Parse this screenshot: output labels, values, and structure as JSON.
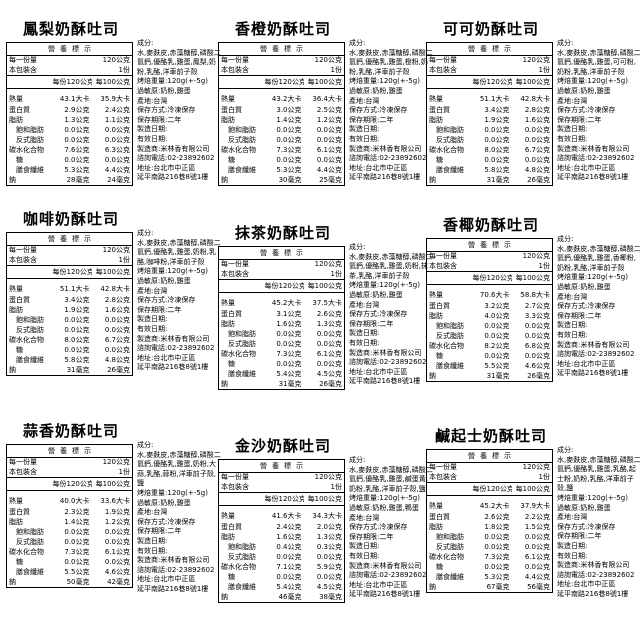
{
  "nutrition_common": {
    "table_title": "營養標示",
    "serving_label": "每一份量",
    "serving_value": "120公克",
    "package_label": "本包裝含",
    "package_value": "1份",
    "col_per_serving": "每份120公克",
    "col_per_100g": "每100公克",
    "row_labels": [
      {
        "label": "熱量",
        "indent": false
      },
      {
        "label": "蛋白質",
        "indent": false
      },
      {
        "label": "脂肪",
        "indent": false
      },
      {
        "label": "飽和脂肪",
        "indent": true
      },
      {
        "label": "反式脂肪",
        "indent": true
      },
      {
        "label": "碳水化合物",
        "indent": false
      },
      {
        "label": "糖",
        "indent": true
      },
      {
        "label": "膳食纖維",
        "indent": true
      },
      {
        "label": "鈉",
        "indent": false
      }
    ]
  },
  "products": [
    {
      "name": "鳳梨奶酥吐司",
      "values": [
        [
          "43.1大卡",
          "35.9大卡"
        ],
        [
          "2.9公克",
          "2.4公克"
        ],
        [
          "1.3公克",
          "1.1公克"
        ],
        [
          "0.0公克",
          "0.0公克"
        ],
        [
          "0.0公克",
          "0.0公克"
        ],
        [
          "7.6公克",
          "6.3公克"
        ],
        [
          "0.0公克",
          "0.0公克"
        ],
        [
          "5.3公克",
          "4.4公克"
        ],
        [
          "28毫克",
          "24毫克"
        ]
      ],
      "info": {
        "ingredients_label": "成分:",
        "ingredients": "水,麥麩皮,赤藻糖醇,磷酸二氫鈣,優酪乳,雞蛋,鳳梨,奶粉,乳酪,洋車前子殼",
        "baked_weight": "烤焙重量:120g(+-5g)",
        "allergens": "過敏原:奶粉,雞蛋",
        "origin": "產地:台灣",
        "storage": "保存方式:冷凍保存",
        "shelf_life": "保存期限:二年",
        "mfg_date": "製造日期:",
        "expiry_date": "有效日期:",
        "manufacturer": "製造商:米林香有限公司",
        "hotline": "諮詢電話:02-23892602",
        "address1": "地址:台北市中正區",
        "address2": "延平南路216巷8號1樓"
      }
    },
    {
      "name": "香橙奶酥吐司",
      "values": [
        [
          "43.2大卡",
          "36.4大卡"
        ],
        [
          "3.0公克",
          "2.5公克"
        ],
        [
          "1.4公克",
          "1.2公克"
        ],
        [
          "0.0公克",
          "0.0公克"
        ],
        [
          "0.0公克",
          "0.0公克"
        ],
        [
          "7.3公克",
          "6.1公克"
        ],
        [
          "0.0公克",
          "0.0公克"
        ],
        [
          "5.3公克",
          "4.4公克"
        ],
        [
          "30毫克",
          "25毫克"
        ]
      ],
      "info": {
        "ingredients_label": "成分:",
        "ingredients": "水,麥麩皮,赤藻糖醇,磷酸二氫鈣,優酪乳,雞蛋,橙粉,奶粉,乳酪,洋車前子殼",
        "baked_weight": "烤焙重量:120g(+-5g)",
        "allergens": "過敏原:奶粉,雞蛋",
        "origin": "產地:台灣",
        "storage": "保存方式:冷凍保存",
        "shelf_life": "保存期限:二年",
        "mfg_date": "製造日期:",
        "expiry_date": "有效日期:",
        "manufacturer": "製造商:米林香有限公司",
        "hotline": "諮詢電話:02-23892602",
        "address1": "地址:台北市中正區",
        "address2": "延平南路216巷8號1樓"
      }
    },
    {
      "name": "可可奶酥吐司",
      "values": [
        [
          "51.1大卡",
          "42.8大卡"
        ],
        [
          "3.4公克",
          "2.8公克"
        ],
        [
          "1.9公克",
          "1.6公克"
        ],
        [
          "0.0公克",
          "0.0公克"
        ],
        [
          "0.0公克",
          "0.0公克"
        ],
        [
          "8.0公克",
          "6.7公克"
        ],
        [
          "0.0公克",
          "0.0公克"
        ],
        [
          "5.8公克",
          "4.8公克"
        ],
        [
          "31毫克",
          "26毫克"
        ]
      ],
      "info": {
        "ingredients_label": "成分:",
        "ingredients": "水,麥麩皮,赤藻糖醇,磷酸二氫鈣,優酪乳,雞蛋,可可粉,奶粉,乳酪,洋車前子殼",
        "baked_weight": "烤焙重量:120g(+-5g)",
        "allergens": "過敏原:奶粉,雞蛋",
        "origin": "產地:台灣",
        "storage": "保存方式:冷凍保存",
        "shelf_life": "保存期限:二年",
        "mfg_date": "製造日期:",
        "expiry_date": "有效日期:",
        "manufacturer": "製造商:米林香有限公司",
        "hotline": "諮詢電話:02-23892602",
        "address1": "地址:台北市中正區",
        "address2": "延平南路216巷8號1樓"
      }
    },
    {
      "name": "咖啡奶酥吐司",
      "values": [
        [
          "51.1大卡",
          "42.8大卡"
        ],
        [
          "3.4公克",
          "2.8公克"
        ],
        [
          "1.9公克",
          "1.6公克"
        ],
        [
          "0.0公克",
          "0.0公克"
        ],
        [
          "0.0公克",
          "0.0公克"
        ],
        [
          "8.0公克",
          "6.7公克"
        ],
        [
          "0.0公克",
          "0.0公克"
        ],
        [
          "5.8公克",
          "4.8公克"
        ],
        [
          "31毫克",
          "26毫克"
        ]
      ],
      "info": {
        "ingredients_label": "成分:",
        "ingredients": "水,麥麩皮,赤藻糖醇,磷酸二氫鈣,優酪乳,雞蛋,奶粉,乳酪,咖啡粉,洋車前子殼",
        "baked_weight": "烤焙重量:120g(+-5g)",
        "allergens": "過敏原:奶粉,雞蛋",
        "origin": "產地:台灣",
        "storage": "保存方式:冷凍保存",
        "shelf_life": "保存期限:二年",
        "mfg_date": "製造日期:",
        "expiry_date": "有效日期:",
        "manufacturer": "製造商:米林香有限公司",
        "hotline": "諮詢電話:02-23892602",
        "address1": "地址:台北市中正區",
        "address2": "延平南路216巷8號1樓"
      }
    },
    {
      "name": "抹茶奶酥吐司",
      "values": [
        [
          "45.2大卡",
          "37.5大卡"
        ],
        [
          "3.1公克",
          "2.6公克"
        ],
        [
          "1.6公克",
          "1.3公克"
        ],
        [
          "0.0公克",
          "0.0公克"
        ],
        [
          "0.0公克",
          "0.0公克"
        ],
        [
          "7.3公克",
          "6.1公克"
        ],
        [
          "0.0公克",
          "0.0公克"
        ],
        [
          "5.4公克",
          "4.5公克"
        ],
        [
          "31毫克",
          "26毫克"
        ]
      ],
      "info": {
        "ingredients_label": "成分:",
        "ingredients": "水,麥麩皮,赤藻糖醇,磷酸二氫鈣,優酪乳,雞蛋,奶粉,抹茶,乳酪,洋車前子殼",
        "baked_weight": "烤焙重量:120g(+-5g)",
        "allergens": "過敏原:奶粉,雞蛋",
        "origin": "產地:台灣",
        "storage": "保存方式:冷凍保存",
        "shelf_life": "保存期限:二年",
        "mfg_date": "製造日期:",
        "expiry_date": "有效日期:",
        "manufacturer": "製造商:米林香有限公司",
        "hotline": "諮詢電話:02-23892602",
        "address1": "地址:台北市中正區",
        "address2": "延平南路216巷8號1樓"
      }
    },
    {
      "name": "香椰奶酥吐司",
      "values": [
        [
          "70.6大卡",
          "58.8大卡"
        ],
        [
          "3.2公克",
          "2.7公克"
        ],
        [
          "4.0公克",
          "3.3公克"
        ],
        [
          "0.0公克",
          "0.0公克"
        ],
        [
          "0.0公克",
          "0.0公克"
        ],
        [
          "8.2公克",
          "6.8公克"
        ],
        [
          "0.0公克",
          "0.0公克"
        ],
        [
          "5.5公克",
          "4.6公克"
        ],
        [
          "31毫克",
          "26毫克"
        ]
      ],
      "info": {
        "ingredients_label": "成分:",
        "ingredients": "水,麥麩皮,赤藻糖醇,磷酸二氫鈣,優酪乳,雞蛋,香椰粉,奶粉,乳酪,洋車前子殼",
        "baked_weight": "烤焙重量:120g(+-5g)",
        "allergens": "過敏原:奶粉,雞蛋",
        "origin": "產地:台灣",
        "storage": "保存方式:冷凍保存",
        "shelf_life": "保存期限:二年",
        "mfg_date": "製造日期:",
        "expiry_date": "有效日期:",
        "manufacturer": "製造商:米林香有限公司",
        "hotline": "諮詢電話:02-23892602",
        "address1": "地址:台北市中正區",
        "address2": "延平南路216巷8號1樓"
      }
    },
    {
      "name": "蒜香奶酥吐司",
      "values": [
        [
          "40.0大卡",
          "33.6大卡"
        ],
        [
          "2.3公克",
          "1.9公克"
        ],
        [
          "1.4公克",
          "1.2公克"
        ],
        [
          "0.0公克",
          "0.0公克"
        ],
        [
          "0.0公克",
          "0.0公克"
        ],
        [
          "7.3公克",
          "6.1公克"
        ],
        [
          "0.0公克",
          "0.0公克"
        ],
        [
          "5.5公克",
          "4.6公克"
        ],
        [
          "50毫克",
          "42毫克"
        ]
      ],
      "info": {
        "ingredients_label": "成分:",
        "ingredients": "水,麥麩皮,赤藻糖醇,磷酸二氫鈣,優酪乳,雞蛋,奶粉,大蒜,乳酪,蒜粉,洋車前子殼,鹽",
        "baked_weight": "烤焙重量:120g(+-5g)",
        "allergens": "過敏原:奶粉,雞蛋",
        "origin": "產地:台灣",
        "storage": "保存方式:冷凍保存",
        "shelf_life": "保存期限:二年",
        "mfg_date": "製造日期:",
        "expiry_date": "有效日期:",
        "manufacturer": "製造商:米林香有限公司",
        "hotline": "諮詢電話:02-23892602",
        "address1": "地址:台北市中正區",
        "address2": "延平南路216巷8號1樓"
      }
    },
    {
      "name": "金沙奶酥吐司",
      "values": [
        [
          "41.6大卡",
          "34.3大卡"
        ],
        [
          "2.4公克",
          "2.0公克"
        ],
        [
          "1.6公克",
          "1.3公克"
        ],
        [
          "0.4公克",
          "0.3公克"
        ],
        [
          "0.0公克",
          "0.0公克"
        ],
        [
          "7.1公克",
          "5.9公克"
        ],
        [
          "0.0公克",
          "0.0公克"
        ],
        [
          "5.4公克",
          "4.5公克"
        ],
        [
          "46毫克",
          "38毫克"
        ]
      ],
      "info": {
        "ingredients_label": "成分:",
        "ingredients": "水,麥麩皮,赤藻糖醇,磷酸二氫鈣,優酪乳,雞蛋,鹹蛋黃,奶粉,乳酪,洋車前子殼,鹽",
        "baked_weight": "烤焙重量:120g(+-5g)",
        "allergens": "過敏原:奶粉,雞蛋,鴨蛋",
        "origin": "產地:台灣",
        "storage": "保存方式:冷凍保存",
        "shelf_life": "保存期限:二年",
        "mfg_date": "製造日期:",
        "expiry_date": "有效日期:",
        "manufacturer": "製造商:米林香有限公司",
        "hotline": "諮詢電話:02-23892602",
        "address1": "地址:台北市中正區",
        "address2": "延平南路216巷8號1樓"
      }
    },
    {
      "name": "鹹起士奶酥吐司",
      "values": [
        [
          "45.2大卡",
          "37.9大卡"
        ],
        [
          "2.6公克",
          "2.2公克"
        ],
        [
          "1.8公克",
          "1.5公克"
        ],
        [
          "0.0公克",
          "0.0公克"
        ],
        [
          "0.0公克",
          "0.0公克"
        ],
        [
          "7.3公克",
          "6.1公克"
        ],
        [
          "0.0公克",
          "0.0公克"
        ],
        [
          "5.3公克",
          "4.4公克"
        ],
        [
          "67毫克",
          "56毫克"
        ]
      ],
      "info": {
        "ingredients_label": "成分:",
        "ingredients": "水,麥麩皮,赤藻糖醇,磷酸二氫鈣,優酪乳,雞蛋,乳酪,起士粉,奶粉,乳酪,洋車前子殼,鹽",
        "baked_weight": "烤焙重量:120g(+-5g)",
        "allergens": "過敏原:奶粉,雞蛋",
        "origin": "產地:台灣",
        "storage": "保存方式:冷凍保存",
        "shelf_life": "保存期限:二年",
        "mfg_date": "製造日期:",
        "expiry_date": "有效日期:",
        "manufacturer": "製造商:米林香有限公司",
        "hotline": "諮詢電話:02-23892602",
        "address1": "地址:台北市中正區",
        "address2": "延平南路216巷8號1樓"
      }
    }
  ]
}
